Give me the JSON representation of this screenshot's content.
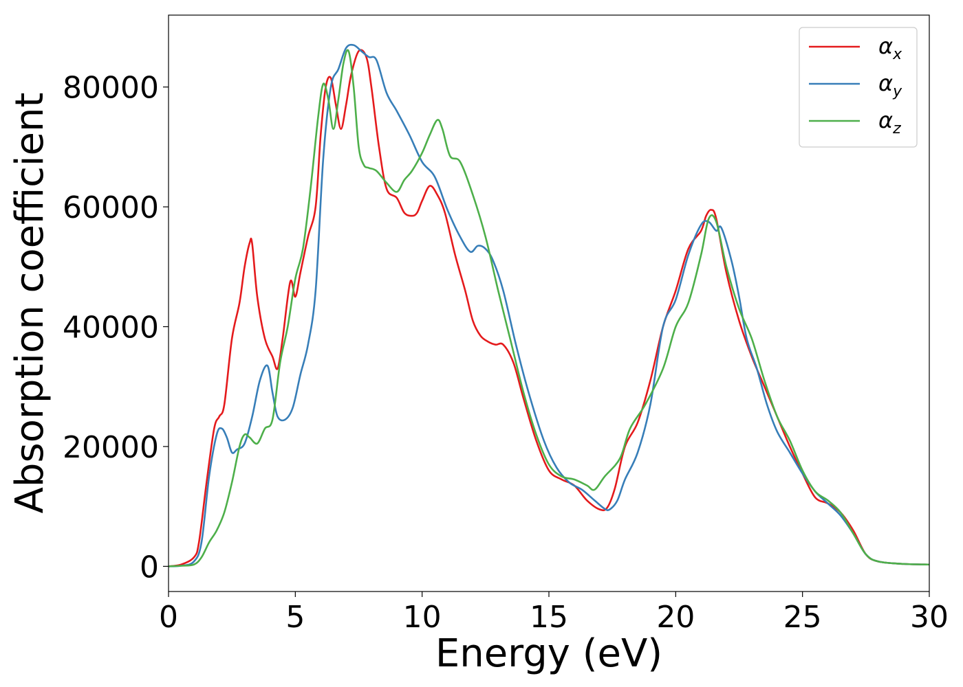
{
  "chart_data": {
    "type": "line",
    "xlabel": "Energy (eV)",
    "ylabel": "Absorption coefficient",
    "xlim": [
      0,
      30
    ],
    "ylim": [
      -4200,
      92000
    ],
    "xticks": [
      0,
      5,
      10,
      15,
      20,
      25,
      30
    ],
    "yticks": [
      0,
      20000,
      40000,
      60000,
      80000
    ],
    "grid": false,
    "legend_position": "top-right",
    "series": [
      {
        "name": "αx",
        "symbol": "α",
        "subscript": "x",
        "color": "#e41a1c",
        "x": [
          0,
          0.5,
          1,
          1.2,
          1.5,
          1.8,
          2,
          2.2,
          2.5,
          2.8,
          3,
          3.2,
          3.3,
          3.5,
          3.8,
          4.1,
          4.3,
          4.5,
          4.8,
          5,
          5.2,
          5.5,
          5.8,
          6,
          6.2,
          6.4,
          6.6,
          6.8,
          7,
          7.2,
          7.5,
          7.8,
          8,
          8.3,
          8.6,
          9,
          9.3,
          9.6,
          9.8,
          10,
          10.3,
          10.6,
          10.9,
          11.3,
          11.7,
          12,
          12.3,
          12.6,
          12.9,
          13.2,
          13.6,
          14,
          14.5,
          15,
          15.5,
          16,
          16.5,
          17,
          17.3,
          17.6,
          18,
          18.5,
          19,
          19.5,
          20,
          20.5,
          21,
          21.2,
          21.4,
          21.6,
          22,
          22.5,
          23,
          23.5,
          24,
          24.5,
          25,
          25.5,
          26,
          26.5,
          27,
          27.5,
          28,
          29,
          30
        ],
        "y": [
          0,
          300,
          1500,
          4000,
          14000,
          23000,
          25000,
          27000,
          38000,
          44000,
          50000,
          54000,
          53800,
          45000,
          38000,
          35000,
          33000,
          38000,
          47500,
          45000,
          49000,
          55000,
          60000,
          72000,
          80000,
          81500,
          77000,
          73000,
          77000,
          82000,
          86000,
          85000,
          80000,
          70000,
          63000,
          61500,
          59000,
          58500,
          59000,
          61000,
          63500,
          62000,
          59000,
          52000,
          46000,
          41000,
          38500,
          37500,
          37000,
          37000,
          34000,
          28000,
          21000,
          16000,
          14500,
          13500,
          11000,
          9500,
          9800,
          13000,
          20000,
          24000,
          31000,
          40000,
          46000,
          53000,
          56000,
          58500,
          59500,
          58000,
          49000,
          41000,
          35000,
          30000,
          25000,
          20000,
          15500,
          11500,
          10500,
          9000,
          6000,
          2000,
          800,
          400,
          300
        ]
      },
      {
        "name": "αy",
        "symbol": "α",
        "subscript": "y",
        "color": "#377eb8",
        "x": [
          0,
          0.5,
          1,
          1.3,
          1.6,
          1.9,
          2.1,
          2.3,
          2.5,
          2.7,
          3,
          3.3,
          3.6,
          3.9,
          4.1,
          4.3,
          4.6,
          4.9,
          5.2,
          5.5,
          5.8,
          6.1,
          6.4,
          6.7,
          7,
          7.3,
          7.6,
          7.9,
          8.2,
          8.6,
          9,
          9.5,
          10,
          10.5,
          11,
          11.5,
          11.9,
          12.2,
          12.5,
          12.8,
          13.2,
          13.7,
          14.2,
          14.8,
          15.3,
          15.8,
          16.3,
          16.8,
          17.2,
          17.4,
          17.7,
          18,
          18.5,
          19,
          19.5,
          20,
          20.5,
          21,
          21.3,
          21.6,
          21.8,
          22.2,
          22.5,
          22.8,
          23.2,
          23.6,
          24,
          24.5,
          25,
          25.5,
          26,
          26.5,
          27,
          27.5,
          28,
          29,
          30
        ],
        "y": [
          0,
          100,
          800,
          4000,
          15000,
          22000,
          23000,
          21500,
          19000,
          19500,
          20500,
          25000,
          31000,
          33500,
          29000,
          25000,
          24500,
          26500,
          32000,
          37000,
          46000,
          68000,
          80000,
          83000,
          86500,
          87000,
          86000,
          85000,
          84500,
          79000,
          76000,
          72000,
          67500,
          65000,
          59500,
          55000,
          52500,
          53500,
          53000,
          51000,
          46000,
          37000,
          29000,
          21000,
          16500,
          14000,
          12800,
          11000,
          9600,
          9500,
          11000,
          14500,
          19000,
          27000,
          40000,
          44500,
          52000,
          57000,
          57500,
          56000,
          56500,
          51000,
          45000,
          38000,
          33000,
          27000,
          22500,
          19000,
          15500,
          12500,
          10500,
          8500,
          5500,
          2000,
          800,
          400,
          300
        ]
      },
      {
        "name": "αz",
        "symbol": "α",
        "subscript": "z",
        "color": "#4daf4a",
        "x": [
          0,
          0.5,
          1,
          1.3,
          1.6,
          1.9,
          2.2,
          2.5,
          2.8,
          3,
          3.2,
          3.5,
          3.8,
          4.1,
          4.4,
          4.7,
          5,
          5.3,
          5.6,
          5.9,
          6.1,
          6.3,
          6.5,
          6.7,
          6.9,
          7.1,
          7.3,
          7.5,
          7.7,
          7.9,
          8.2,
          8.6,
          9,
          9.3,
          9.6,
          10,
          10.3,
          10.6,
          10.8,
          11.1,
          11.5,
          12,
          12.5,
          13,
          13.5,
          14,
          14.5,
          15,
          15.5,
          16,
          16.5,
          16.8,
          17.2,
          17.8,
          18.2,
          18.8,
          19.5,
          20,
          20.5,
          21,
          21.3,
          21.6,
          22,
          22.5,
          23,
          23.5,
          24,
          24.5,
          25,
          25.5,
          26,
          26.5,
          27,
          27.5,
          28,
          29,
          30
        ],
        "y": [
          0,
          100,
          300,
          1500,
          4000,
          6000,
          9000,
          14000,
          20000,
          22000,
          21500,
          20500,
          23000,
          24500,
          34000,
          40000,
          48000,
          53000,
          63000,
          75000,
          80500,
          78000,
          73000,
          78000,
          84000,
          86000,
          80000,
          70000,
          67000,
          66500,
          66000,
          64000,
          62500,
          64500,
          66000,
          69000,
          72000,
          74500,
          73000,
          68500,
          67500,
          62000,
          55000,
          46000,
          37500,
          29000,
          22000,
          17000,
          15000,
          14500,
          13500,
          12800,
          15000,
          18000,
          23000,
          27000,
          33000,
          40000,
          44000,
          52000,
          58000,
          57500,
          50000,
          43000,
          38000,
          31000,
          25000,
          21000,
          16000,
          12500,
          11000,
          9000,
          5500,
          2000,
          800,
          400,
          300
        ]
      }
    ]
  }
}
